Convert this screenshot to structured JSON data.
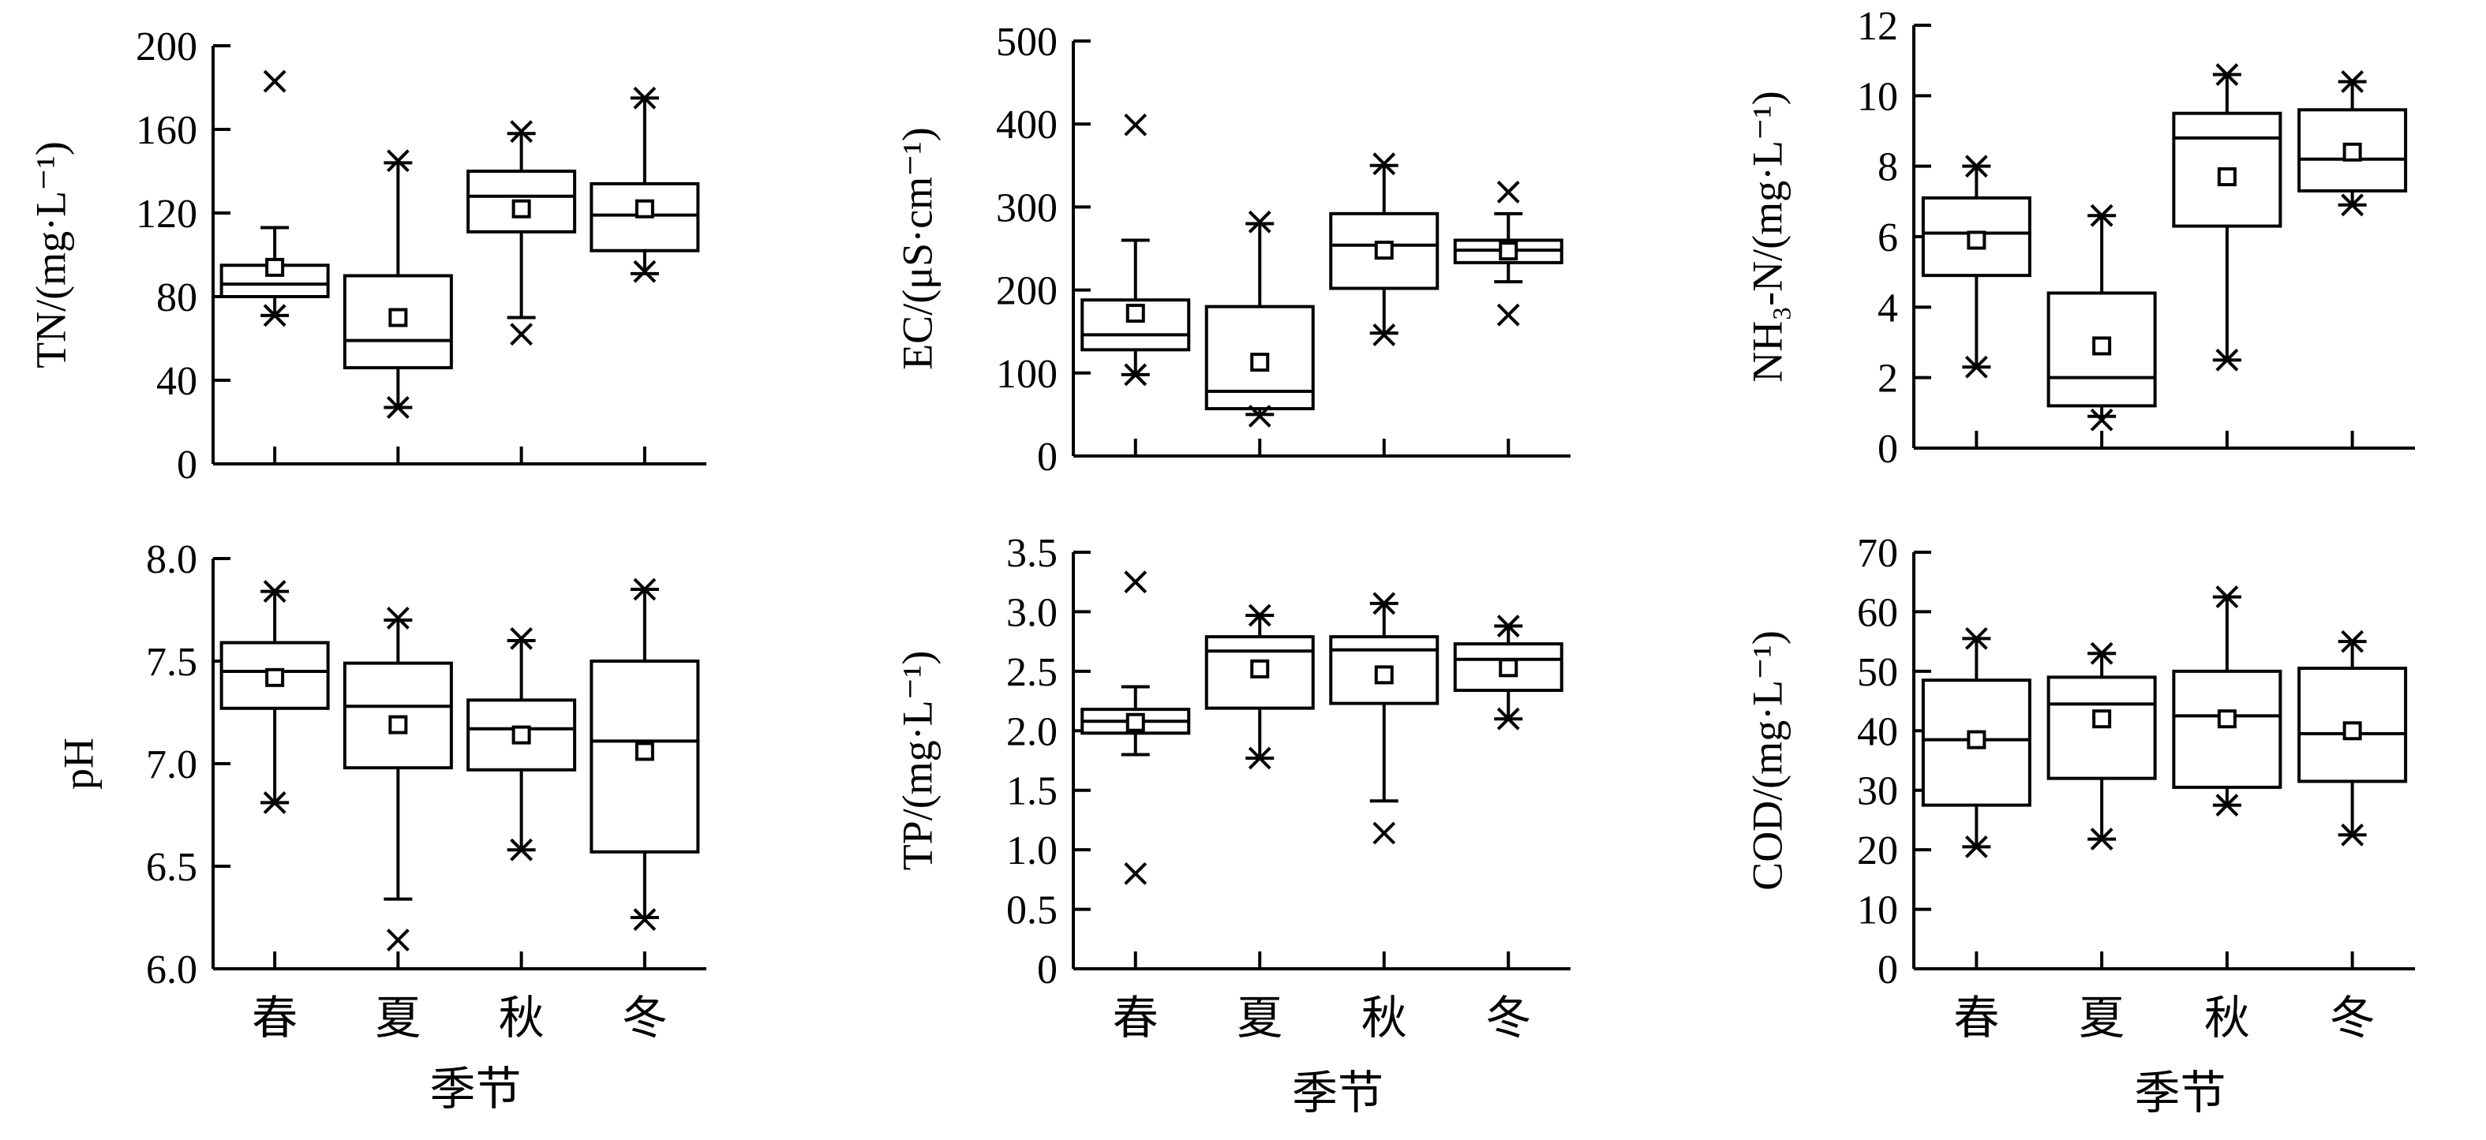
{
  "chart_data": [
    {
      "type": "box",
      "ylabel": "TN/(mg·L⁻¹)",
      "ylim": [
        0,
        200
      ],
      "yticks": [
        "0",
        "40",
        "80",
        "120",
        "160",
        "200"
      ],
      "categories": [
        "春",
        "夏",
        "秋",
        "冬"
      ],
      "xlabel": "",
      "boxes": [
        {
          "min": 71,
          "q1": 80,
          "median": 86,
          "q3": 95,
          "max": 113,
          "mean": 94,
          "outliers": [
            71,
            183
          ]
        },
        {
          "min": 27,
          "q1": 46,
          "median": 59,
          "q3": 90,
          "max": 144,
          "mean": 70,
          "outliers": [
            27,
            145
          ]
        },
        {
          "min": 70,
          "q1": 111,
          "median": 128,
          "q3": 140,
          "max": 158,
          "mean": 122,
          "outliers": [
            62,
            159
          ]
        },
        {
          "min": 91,
          "q1": 102,
          "median": 119,
          "q3": 134,
          "max": 175,
          "mean": 122,
          "outliers": [
            92,
            175
          ]
        }
      ]
    },
    {
      "type": "box",
      "ylabel": "EC/(μS·cm⁻¹)",
      "ylim": [
        0,
        500
      ],
      "yticks": [
        "0",
        "100",
        "200",
        "300",
        "400",
        "500"
      ],
      "categories": [
        "春",
        "夏",
        "秋",
        "冬"
      ],
      "xlabel": "",
      "boxes": [
        {
          "min": 98,
          "q1": 128,
          "median": 146,
          "q3": 188,
          "max": 260,
          "mean": 172,
          "outliers": [
            98,
            399
          ]
        },
        {
          "min": 50,
          "q1": 57,
          "median": 78,
          "q3": 180,
          "max": 280,
          "mean": 113,
          "outliers": [
            48,
            282
          ]
        },
        {
          "min": 148,
          "q1": 202,
          "median": 254,
          "q3": 292,
          "max": 350,
          "mean": 248,
          "outliers": [
            146,
            352
          ]
        },
        {
          "min": 210,
          "q1": 233,
          "median": 248,
          "q3": 260,
          "max": 292,
          "mean": 247,
          "outliers": [
            170,
            318
          ]
        }
      ]
    },
    {
      "type": "box",
      "ylabel": "NH₃-N/(mg·L⁻¹)",
      "ylim": [
        0,
        12
      ],
      "yticks": [
        "0",
        "2",
        "4",
        "6",
        "8",
        "10",
        "12"
      ],
      "categories": [
        "春",
        "夏",
        "秋",
        "冬"
      ],
      "xlabel": "",
      "boxes": [
        {
          "min": 2.3,
          "q1": 4.9,
          "median": 6.1,
          "q3": 7.1,
          "max": 8.0,
          "mean": 5.9,
          "outliers": [
            2.3,
            8.0
          ]
        },
        {
          "min": 0.9,
          "q1": 1.2,
          "median": 2.0,
          "q3": 4.4,
          "max": 6.6,
          "mean": 2.9,
          "outliers": [
            0.8,
            6.6
          ]
        },
        {
          "min": 2.5,
          "q1": 6.3,
          "median": 8.8,
          "q3": 9.5,
          "max": 10.6,
          "mean": 7.7,
          "outliers": [
            2.5,
            10.6
          ]
        },
        {
          "min": 6.9,
          "q1": 7.3,
          "median": 8.2,
          "q3": 9.6,
          "max": 10.4,
          "mean": 8.4,
          "outliers": [
            6.9,
            10.4
          ]
        }
      ]
    },
    {
      "type": "box",
      "ylabel": "pH",
      "ylim": [
        6.0,
        8.0
      ],
      "yticks": [
        "6.0",
        "6.5",
        "7.0",
        "7.5",
        "8.0"
      ],
      "categories": [
        "春",
        "夏",
        "秋",
        "冬"
      ],
      "xlabel": "季节",
      "boxes": [
        {
          "min": 6.81,
          "q1": 7.27,
          "median": 7.45,
          "q3": 7.59,
          "max": 7.84,
          "mean": 7.42,
          "outliers": [
            6.81,
            7.84
          ]
        },
        {
          "min": 6.34,
          "q1": 6.98,
          "median": 7.28,
          "q3": 7.49,
          "max": 7.7,
          "mean": 7.19,
          "outliers": [
            6.14,
            7.71
          ]
        },
        {
          "min": 6.58,
          "q1": 6.97,
          "median": 7.17,
          "q3": 7.31,
          "max": 7.6,
          "mean": 7.14,
          "outliers": [
            6.58,
            7.61
          ]
        },
        {
          "min": 6.25,
          "q1": 6.57,
          "median": 7.11,
          "q3": 7.5,
          "max": 7.85,
          "mean": 7.06,
          "outliers": [
            6.24,
            7.85
          ]
        }
      ]
    },
    {
      "type": "box",
      "ylabel": "TP/(mg·L⁻¹)",
      "ylim": [
        0,
        3.5
      ],
      "yticks": [
        "0",
        "0.5",
        "1.0",
        "1.5",
        "2.0",
        "2.5",
        "3.0",
        "3.5"
      ],
      "categories": [
        "春",
        "夏",
        "秋",
        "冬"
      ],
      "xlabel": "季节",
      "boxes": [
        {
          "min": 1.8,
          "q1": 1.98,
          "median": 2.08,
          "q3": 2.18,
          "max": 2.37,
          "mean": 2.07,
          "outliers": [
            0.8,
            3.25
          ]
        },
        {
          "min": 1.77,
          "q1": 2.19,
          "median": 2.67,
          "q3": 2.79,
          "max": 2.97,
          "mean": 2.52,
          "outliers": [
            1.77,
            2.97
          ]
        },
        {
          "min": 1.41,
          "q1": 2.23,
          "median": 2.68,
          "q3": 2.79,
          "max": 3.07,
          "mean": 2.47,
          "outliers": [
            1.14,
            3.07
          ]
        },
        {
          "min": 2.1,
          "q1": 2.34,
          "median": 2.6,
          "q3": 2.73,
          "max": 2.88,
          "mean": 2.53,
          "outliers": [
            2.1,
            2.88
          ]
        }
      ]
    },
    {
      "type": "box",
      "ylabel": "COD/(mg·L⁻¹)",
      "ylim": [
        0,
        70
      ],
      "yticks": [
        "0",
        "10",
        "20",
        "30",
        "40",
        "50",
        "60",
        "70"
      ],
      "categories": [
        "春",
        "夏",
        "秋",
        "冬"
      ],
      "xlabel": "季节",
      "boxes": [
        {
          "min": 20.5,
          "q1": 27.5,
          "median": 38.5,
          "q3": 48.5,
          "max": 55.5,
          "mean": 38.5,
          "outliers": [
            20.5,
            55.5
          ]
        },
        {
          "min": 21.8,
          "q1": 32,
          "median": 44.5,
          "q3": 49,
          "max": 53,
          "mean": 42,
          "outliers": [
            21.8,
            53
          ]
        },
        {
          "min": 27.5,
          "q1": 30.5,
          "median": 42.5,
          "q3": 50,
          "max": 62.5,
          "mean": 42,
          "outliers": [
            27.5,
            62.5
          ]
        },
        {
          "min": 22.5,
          "q1": 31.5,
          "median": 39.5,
          "q3": 50.5,
          "max": 55,
          "mean": 40,
          "outliers": [
            22.5,
            55
          ]
        }
      ]
    }
  ]
}
